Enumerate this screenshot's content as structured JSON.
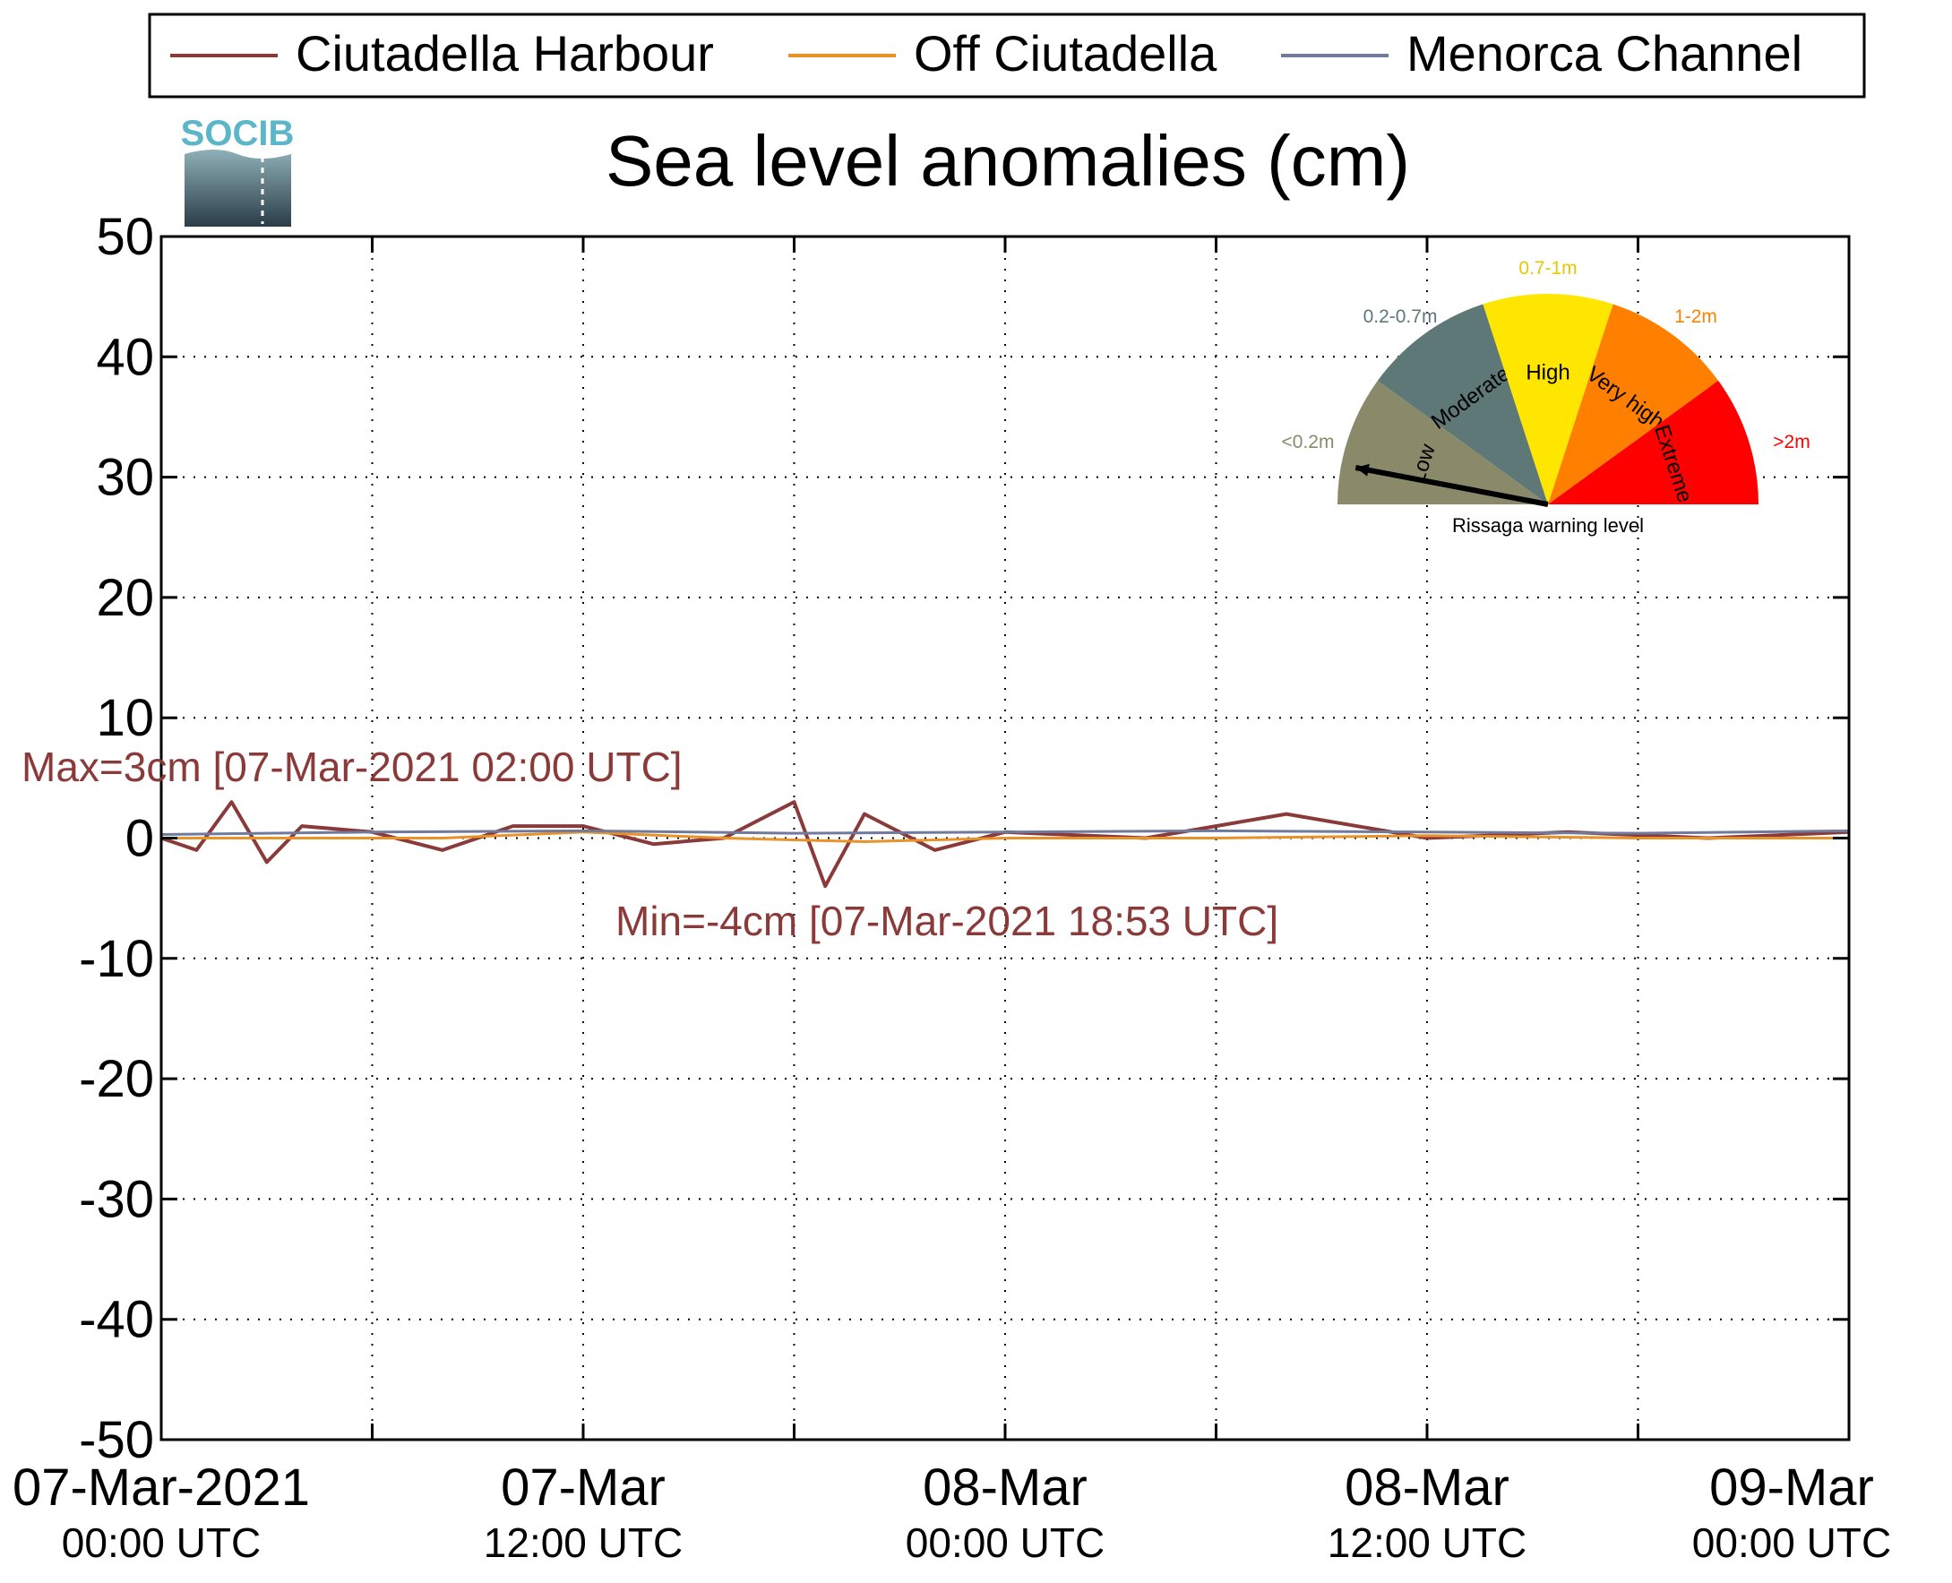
{
  "logo": {
    "text": "SOCIB"
  },
  "chart_data": {
    "type": "line",
    "title": "Sea level anomalies (cm)",
    "xlabel": "",
    "ylabel": "",
    "ylim": [
      -50,
      50
    ],
    "yticks": [
      50,
      40,
      30,
      20,
      10,
      0,
      -10,
      -20,
      -30,
      -40,
      -50
    ],
    "xlim": [
      "07-Mar-2021 00:00",
      "09-Mar-2021 00:00"
    ],
    "xticks": [
      {
        "date": "07-Mar-2021 00:00",
        "line1": "07-Mar-2021",
        "line2": "00:00 UTC"
      },
      {
        "date": "07-Mar-2021 12:00",
        "line1": "07-Mar",
        "line2": "12:00 UTC"
      },
      {
        "date": "08-Mar-2021 00:00",
        "line1": "08-Mar",
        "line2": "00:00 UTC"
      },
      {
        "date": "08-Mar-2021 12:00",
        "line1": "08-Mar",
        "line2": "12:00 UTC"
      },
      {
        "date": "09-Mar-2021 00:00",
        "line1": "09-Mar",
        "line2": "00:00 UTC"
      }
    ],
    "grid": true,
    "legend_position": "top",
    "series": [
      {
        "name": "Ciutadella Harbour",
        "color": "#8b3a3a",
        "x": [
          "07-Mar-2021 00:00",
          "07-Mar-2021 01:00",
          "07-Mar-2021 02:00",
          "07-Mar-2021 03:00",
          "07-Mar-2021 04:00",
          "07-Mar-2021 06:00",
          "07-Mar-2021 08:00",
          "07-Mar-2021 10:00",
          "07-Mar-2021 12:00",
          "07-Mar-2021 14:00",
          "07-Mar-2021 16:00",
          "07-Mar-2021 18:00",
          "07-Mar-2021 18:53",
          "07-Mar-2021 20:00",
          "07-Mar-2021 22:00",
          "08-Mar-2021 00:00",
          "08-Mar-2021 04:00",
          "08-Mar-2021 06:00",
          "08-Mar-2021 08:00",
          "08-Mar-2021 12:00",
          "08-Mar-2021 16:00",
          "08-Mar-2021 20:00",
          "09-Mar-2021 00:00"
        ],
        "values": [
          0,
          -1,
          3,
          -2,
          1,
          0.5,
          -1,
          1,
          1,
          -0.5,
          0,
          3,
          -4,
          2,
          -1,
          0.5,
          0,
          1,
          2,
          0,
          0.5,
          0,
          0.5
        ]
      },
      {
        "name": "Off Ciutadella",
        "color": "#e8922a",
        "x": [
          "07-Mar-2021 00:00",
          "07-Mar-2021 04:00",
          "07-Mar-2021 08:00",
          "07-Mar-2021 12:00",
          "07-Mar-2021 16:00",
          "07-Mar-2021 20:00",
          "08-Mar-2021 00:00",
          "08-Mar-2021 06:00",
          "08-Mar-2021 12:00",
          "08-Mar-2021 18:00",
          "09-Mar-2021 00:00"
        ],
        "values": [
          0,
          0,
          0,
          0.5,
          0,
          -0.3,
          0,
          0,
          0.2,
          0,
          0
        ]
      },
      {
        "name": "Menorca Channel",
        "color": "#6f7a9c",
        "x": [
          "07-Mar-2021 00:00",
          "07-Mar-2021 06:00",
          "07-Mar-2021 12:00",
          "07-Mar-2021 18:00",
          "08-Mar-2021 00:00",
          "08-Mar-2021 06:00",
          "08-Mar-2021 12:00",
          "08-Mar-2021 18:00",
          "09-Mar-2021 00:00"
        ],
        "values": [
          0.3,
          0.5,
          0.6,
          0.4,
          0.5,
          0.6,
          0.5,
          0.4,
          0.6
        ]
      }
    ],
    "annotations": [
      {
        "text": "Max=3cm [07-Mar-2021 02:00 UTC]",
        "color": "#8b3a3a"
      },
      {
        "text": "Min=-4cm [07-Mar-2021 18:53 UTC]",
        "color": "#8b3a3a"
      }
    ]
  },
  "gauge": {
    "caption": "Rissaga warning level",
    "segments": [
      {
        "label": "Low",
        "range": "<0.2m",
        "color": "#8a8a6a"
      },
      {
        "label": "Moderate",
        "range": "0.2-0.7m",
        "color": "#5d7877"
      },
      {
        "label": "High",
        "range": "0.7-1m",
        "color": "#ffe600"
      },
      {
        "label": "Very high",
        "range": "1-2m",
        "color": "#ff8000"
      },
      {
        "label": "Extreme",
        "range": ">2m",
        "color": "#ff0000"
      }
    ],
    "active_level": "Low"
  }
}
